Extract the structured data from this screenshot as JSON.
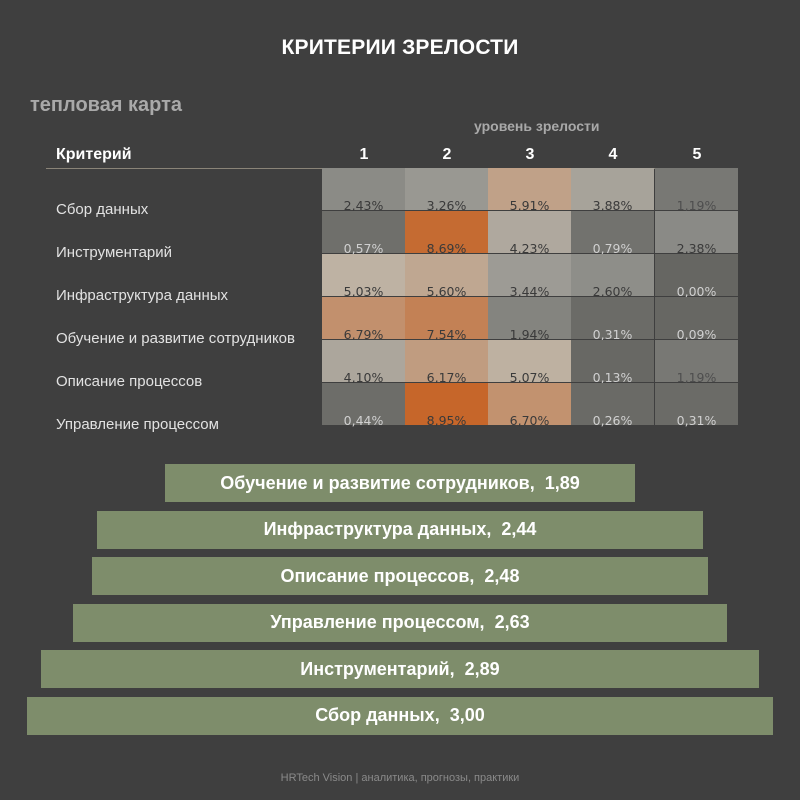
{
  "title": "КРИТЕРИИ ЗРЕЛОСТИ",
  "subtitle": "тепловая карта",
  "footer": "HRTech Vision | аналитика, прогнозы, практики",
  "colors": {
    "background": "#3f3f3f",
    "bar": "#7e8d6b",
    "heat_high": "#c6662a",
    "heat_low": "#6a6a66"
  },
  "chart_data": [
    {
      "type": "heatmap",
      "xlabel": "уровень зрелости",
      "row_header": "Критерий",
      "columns": [
        "1",
        "2",
        "3",
        "4",
        "5"
      ],
      "rows": [
        {
          "label": "Сбор данных",
          "values": [
            2.43,
            3.26,
            5.91,
            3.88,
            1.19
          ],
          "labels": [
            "2,43%",
            "3,26%",
            "5,91%",
            "3,88%",
            "1,19%"
          ]
        },
        {
          "label": "Инструментарий",
          "values": [
            0.57,
            8.69,
            4.23,
            0.79,
            2.38
          ],
          "labels": [
            "0,57%",
            "8,69%",
            "4,23%",
            "0,79%",
            "2,38%"
          ]
        },
        {
          "label": "Инфраструктура данных",
          "values": [
            5.03,
            5.6,
            3.44,
            2.6,
            0.0
          ],
          "labels": [
            "5,03%",
            "5,60%",
            "3,44%",
            "2,60%",
            "0,00%"
          ]
        },
        {
          "label": "Обучение и развитие сотрудников",
          "values": [
            6.79,
            7.54,
            1.94,
            0.31,
            0.09
          ],
          "labels": [
            "6,79%",
            "7,54%",
            "1,94%",
            "0,31%",
            "0,09%"
          ]
        },
        {
          "label": "Описание процессов",
          "values": [
            4.1,
            6.17,
            5.07,
            0.13,
            1.19
          ],
          "labels": [
            "4,10%",
            "6,17%",
            "5,07%",
            "0,13%",
            "1,19%"
          ]
        },
        {
          "label": "Управление процессом",
          "values": [
            0.44,
            8.95,
            6.7,
            0.26,
            0.31
          ],
          "labels": [
            "0,44%",
            "8,95%",
            "6,70%",
            "0,26%",
            "0,31%"
          ]
        }
      ]
    },
    {
      "type": "bar",
      "orientation": "horizontal",
      "style": "pyramid",
      "categories": [
        "Обучение и развитие сотрудников",
        "Инфраструктура данных",
        "Описание процессов",
        "Управление процессом",
        "Инструментарий",
        "Сбор данных"
      ],
      "values": [
        1.89,
        2.44,
        2.48,
        2.63,
        2.89,
        3.0
      ],
      "value_labels": [
        "1,89",
        "2,44",
        "2,48",
        "2,63",
        "2,89",
        "3,00"
      ]
    }
  ]
}
